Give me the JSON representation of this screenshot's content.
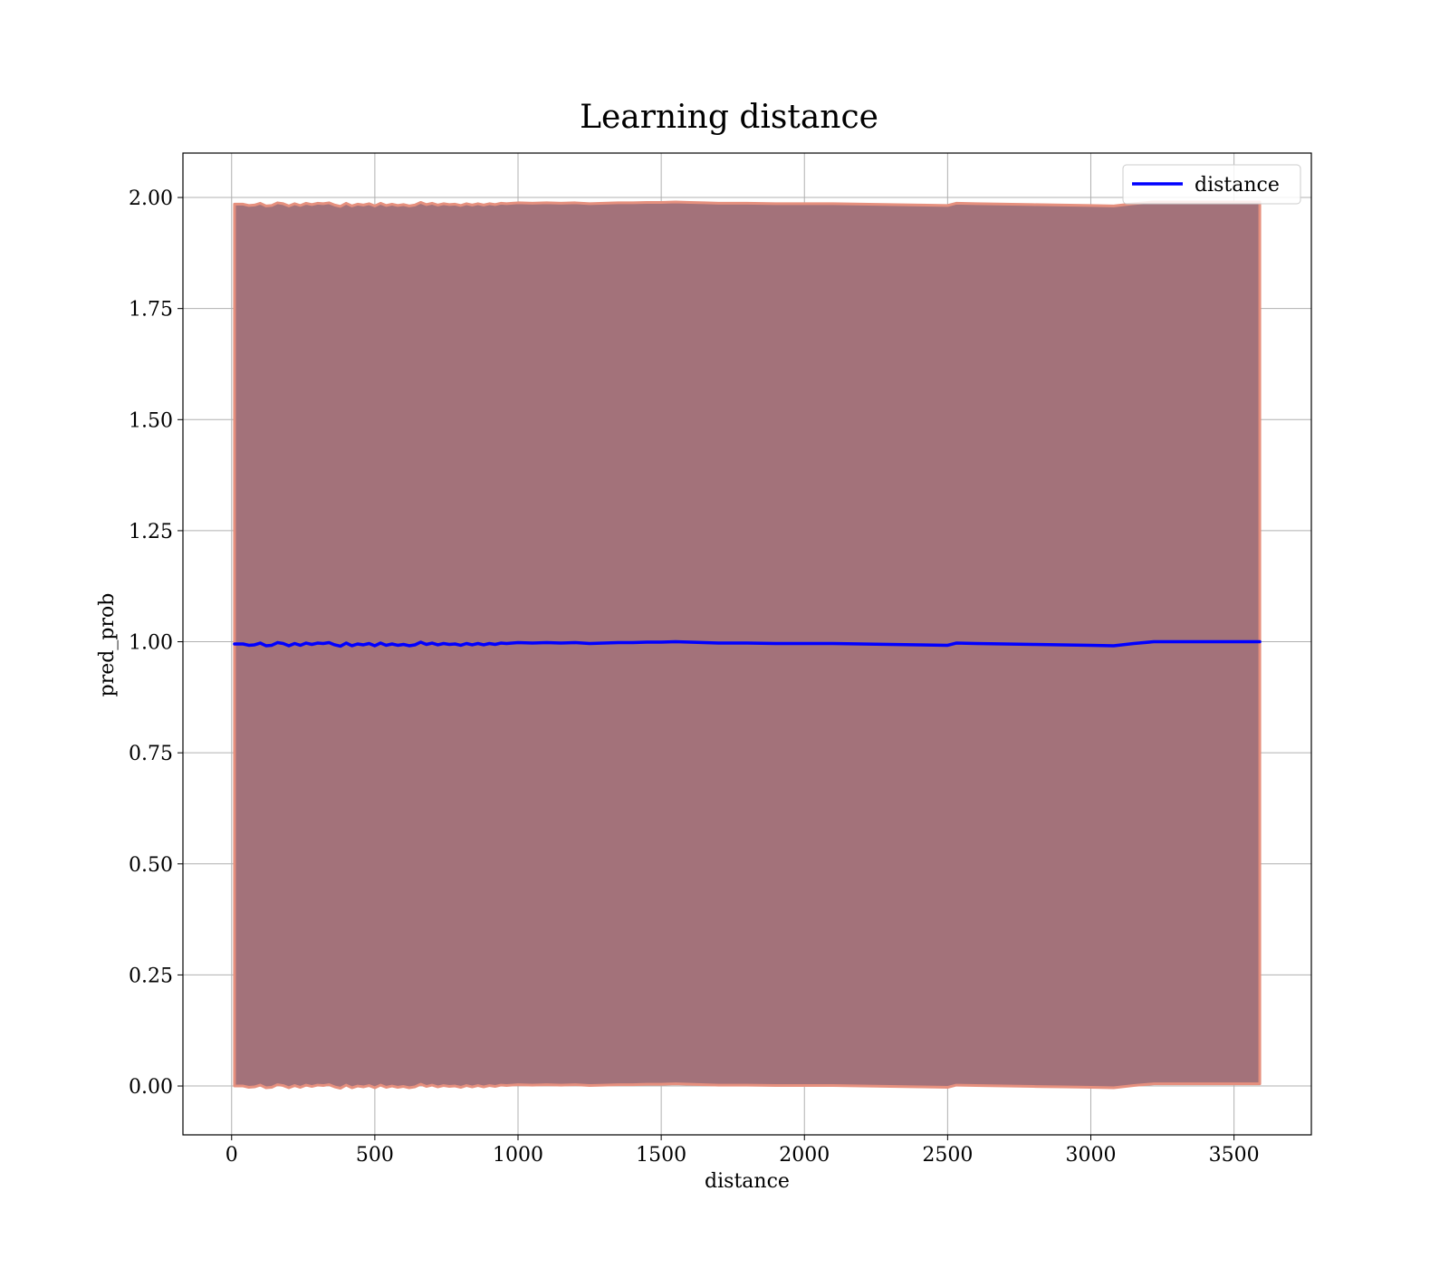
{
  "chart_data": {
    "type": "line",
    "title": "Learning distance",
    "xlabel": "distance",
    "ylabel": "pred_prob",
    "xlim": [
      -170,
      3770
    ],
    "ylim": [
      -0.11,
      2.1
    ],
    "xticks": [
      0,
      500,
      1000,
      1500,
      2000,
      2500,
      3000,
      3500
    ],
    "xtick_labels": [
      "0",
      "500",
      "1000",
      "1500",
      "2000",
      "2500",
      "3000",
      "3500"
    ],
    "yticks": [
      0.0,
      0.25,
      0.5,
      0.75,
      1.0,
      1.25,
      1.5,
      1.75,
      2.0
    ],
    "ytick_labels": [
      "0.00",
      "0.25",
      "0.50",
      "0.75",
      "1.00",
      "1.25",
      "1.50",
      "1.75",
      "2.00"
    ],
    "grid": true,
    "legend_position": "top-right",
    "series": [
      {
        "name": "distance",
        "color": "#0000ff",
        "x": [
          10,
          40,
          60,
          80,
          100,
          120,
          140,
          160,
          180,
          200,
          220,
          240,
          260,
          280,
          300,
          320,
          340,
          360,
          380,
          400,
          420,
          440,
          460,
          480,
          500,
          520,
          540,
          560,
          580,
          600,
          620,
          640,
          660,
          680,
          700,
          720,
          740,
          760,
          780,
          800,
          820,
          840,
          860,
          880,
          900,
          920,
          940,
          960,
          980,
          1000,
          1050,
          1100,
          1150,
          1200,
          1250,
          1300,
          1350,
          1400,
          1450,
          1500,
          1550,
          1600,
          1650,
          1700,
          1800,
          1900,
          2000,
          2100,
          2200,
          2300,
          2400,
          2500,
          2530,
          2600,
          2700,
          2800,
          2900,
          3000,
          3080,
          3150,
          3220,
          3300,
          3400,
          3500,
          3590
        ],
        "y": [
          0.995,
          0.995,
          0.992,
          0.993,
          0.997,
          0.991,
          0.992,
          0.998,
          0.996,
          0.991,
          0.996,
          0.992,
          0.997,
          0.994,
          0.997,
          0.996,
          0.998,
          0.993,
          0.99,
          0.997,
          0.991,
          0.995,
          0.993,
          0.996,
          0.991,
          0.997,
          0.992,
          0.995,
          0.992,
          0.994,
          0.991,
          0.993,
          0.999,
          0.994,
          0.997,
          0.993,
          0.996,
          0.994,
          0.995,
          0.992,
          0.996,
          0.993,
          0.996,
          0.993,
          0.996,
          0.994,
          0.997,
          0.996,
          0.997,
          0.998,
          0.997,
          0.998,
          0.997,
          0.998,
          0.996,
          0.997,
          0.998,
          0.998,
          0.999,
          0.999,
          1.0,
          0.999,
          0.998,
          0.997,
          0.997,
          0.996,
          0.996,
          0.996,
          0.995,
          0.994,
          0.993,
          0.992,
          0.997,
          0.996,
          0.995,
          0.994,
          0.993,
          0.992,
          0.991,
          0.996,
          1.0,
          1.0,
          1.0,
          1.0,
          1.0
        ]
      }
    ],
    "band": {
      "color": "#a3727a",
      "edge_color": "#e6907e",
      "lower_offset_from_line": -0.995,
      "upper_offset_from_line": 0.99
    },
    "legend": [
      {
        "label": "distance",
        "color": "#0000ff"
      }
    ]
  }
}
